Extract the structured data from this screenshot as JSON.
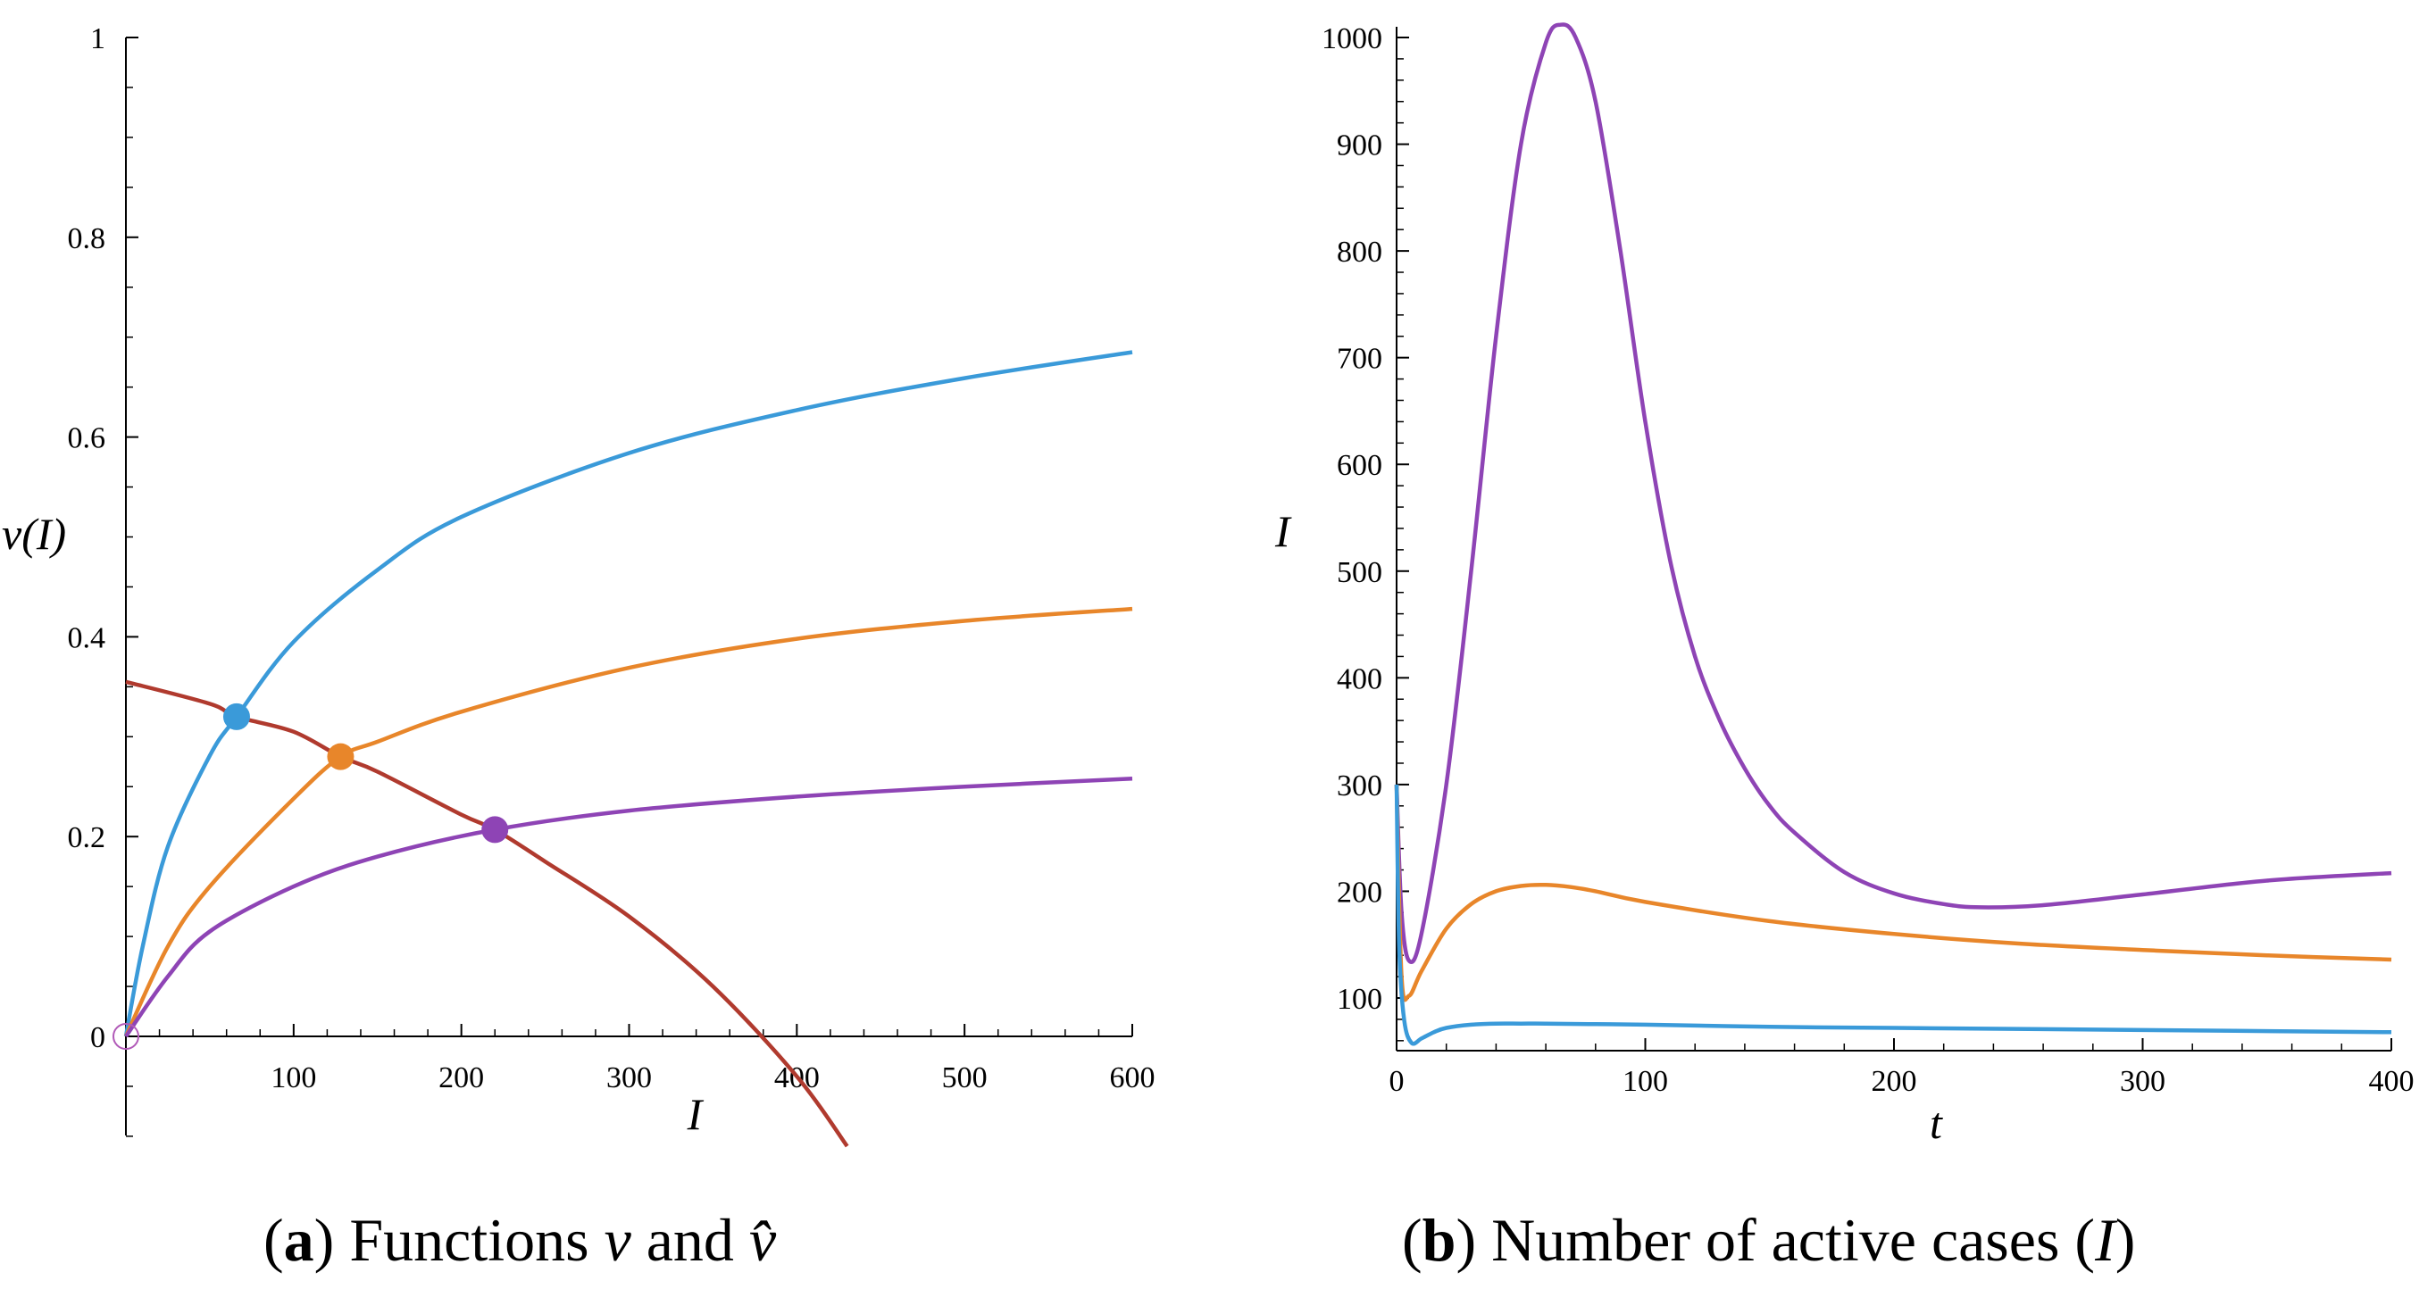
{
  "chart_data": [
    {
      "type": "line",
      "panel": "a",
      "caption": {
        "letter": "a",
        "text": "Functions",
        "v": "v",
        "and": "and",
        "vhat": "v̂"
      },
      "xlabel": "I",
      "ylabel": "v(I)",
      "xlim": [
        0,
        600
      ],
      "ylim": [
        -0.1,
        1
      ],
      "xticks": [
        100,
        200,
        300,
        400,
        500,
        600
      ],
      "yticks": [
        0,
        0.2,
        0.4,
        0.6,
        0.8,
        1
      ],
      "ytick_labels": [
        "0",
        "0.2",
        "0.4",
        "0.6",
        "0.8",
        "1"
      ],
      "series": [
        {
          "name": "v (blue)",
          "color": "#3a9ad9",
          "x": [
            0,
            10,
            25,
            50,
            66,
            100,
            150,
            200,
            300,
            400,
            500,
            600
          ],
          "y": [
            0,
            0.09,
            0.19,
            0.281,
            0.32,
            0.395,
            0.467,
            0.52,
            0.584,
            0.627,
            0.659,
            0.685
          ]
        },
        {
          "name": "v (orange)",
          "color": "#e8862a",
          "x": [
            0,
            25,
            50,
            100,
            128,
            150,
            200,
            300,
            400,
            500,
            600
          ],
          "y": [
            0,
            0.09,
            0.15,
            0.238,
            0.28,
            0.295,
            0.325,
            0.369,
            0.398,
            0.416,
            0.428
          ]
        },
        {
          "name": "v (purple)",
          "color": "#8e44b5",
          "x": [
            0,
            25,
            50,
            100,
            150,
            220,
            300,
            400,
            500,
            600
          ],
          "y": [
            0,
            0.06,
            0.105,
            0.15,
            0.18,
            0.207,
            0.226,
            0.24,
            0.25,
            0.258
          ]
        },
        {
          "name": "v hat (red)",
          "color": "#b03a2e",
          "x": [
            0,
            50,
            66,
            100,
            128,
            150,
            200,
            220,
            250,
            300,
            350,
            400,
            430
          ],
          "y": [
            0.355,
            0.333,
            0.32,
            0.305,
            0.28,
            0.265,
            0.222,
            0.207,
            0.175,
            0.12,
            0.05,
            -0.04,
            -0.11
          ]
        }
      ],
      "equilibria": [
        {
          "x": 66,
          "y": 0.32,
          "color": "#3a9ad9"
        },
        {
          "x": 128,
          "y": 0.28,
          "color": "#e8862a"
        },
        {
          "x": 220,
          "y": 0.207,
          "color": "#8e44b5"
        }
      ],
      "origin_marker": {
        "x": 0,
        "y": 0,
        "color": "#b15ab8"
      }
    },
    {
      "type": "line",
      "panel": "b",
      "caption": {
        "letter": "b",
        "text": "Number of active cases (",
        "var": "I",
        "close": ")"
      },
      "xlabel": "t",
      "ylabel": "I",
      "xlim": [
        0,
        400
      ],
      "ylim": [
        50,
        1015
      ],
      "xticks": [
        0,
        100,
        200,
        300,
        400
      ],
      "yticks": [
        100,
        200,
        300,
        400,
        500,
        600,
        700,
        800,
        900,
        1000
      ],
      "series": [
        {
          "name": "I (purple)",
          "color": "#8e44b5",
          "x": [
            0,
            2,
            5,
            10,
            20,
            30,
            40,
            50,
            60,
            66,
            72,
            80,
            90,
            100,
            110,
            120,
            130,
            140,
            150,
            160,
            180,
            200,
            220,
            235,
            260,
            300,
            350,
            400
          ],
          "y": [
            300,
            180,
            135,
            160,
            300,
            500,
            720,
            900,
            995,
            1012,
            1000,
            940,
            800,
            640,
            510,
            420,
            360,
            315,
            280,
            255,
            218,
            198,
            188,
            185,
            187,
            197,
            210,
            217
          ]
        },
        {
          "name": "I (orange)",
          "color": "#e8862a",
          "x": [
            0,
            2,
            5,
            10,
            20,
            30,
            40,
            50,
            60,
            70,
            80,
            100,
            150,
            200,
            250,
            300,
            350,
            400
          ],
          "y": [
            300,
            120,
            102,
            125,
            165,
            188,
            200,
            205,
            206,
            204,
            200,
            190,
            172,
            160,
            151,
            145,
            140,
            136
          ]
        },
        {
          "name": "I (blue)",
          "color": "#3a9ad9",
          "x": [
            0,
            1,
            3,
            6,
            10,
            15,
            20,
            30,
            40,
            50,
            60,
            80,
            100,
            150,
            200,
            300,
            400
          ],
          "y": [
            300,
            150,
            80,
            58,
            62,
            68,
            72,
            75,
            76,
            76,
            76,
            75.5,
            75,
            73,
            72,
            70,
            68
          ]
        }
      ]
    }
  ]
}
